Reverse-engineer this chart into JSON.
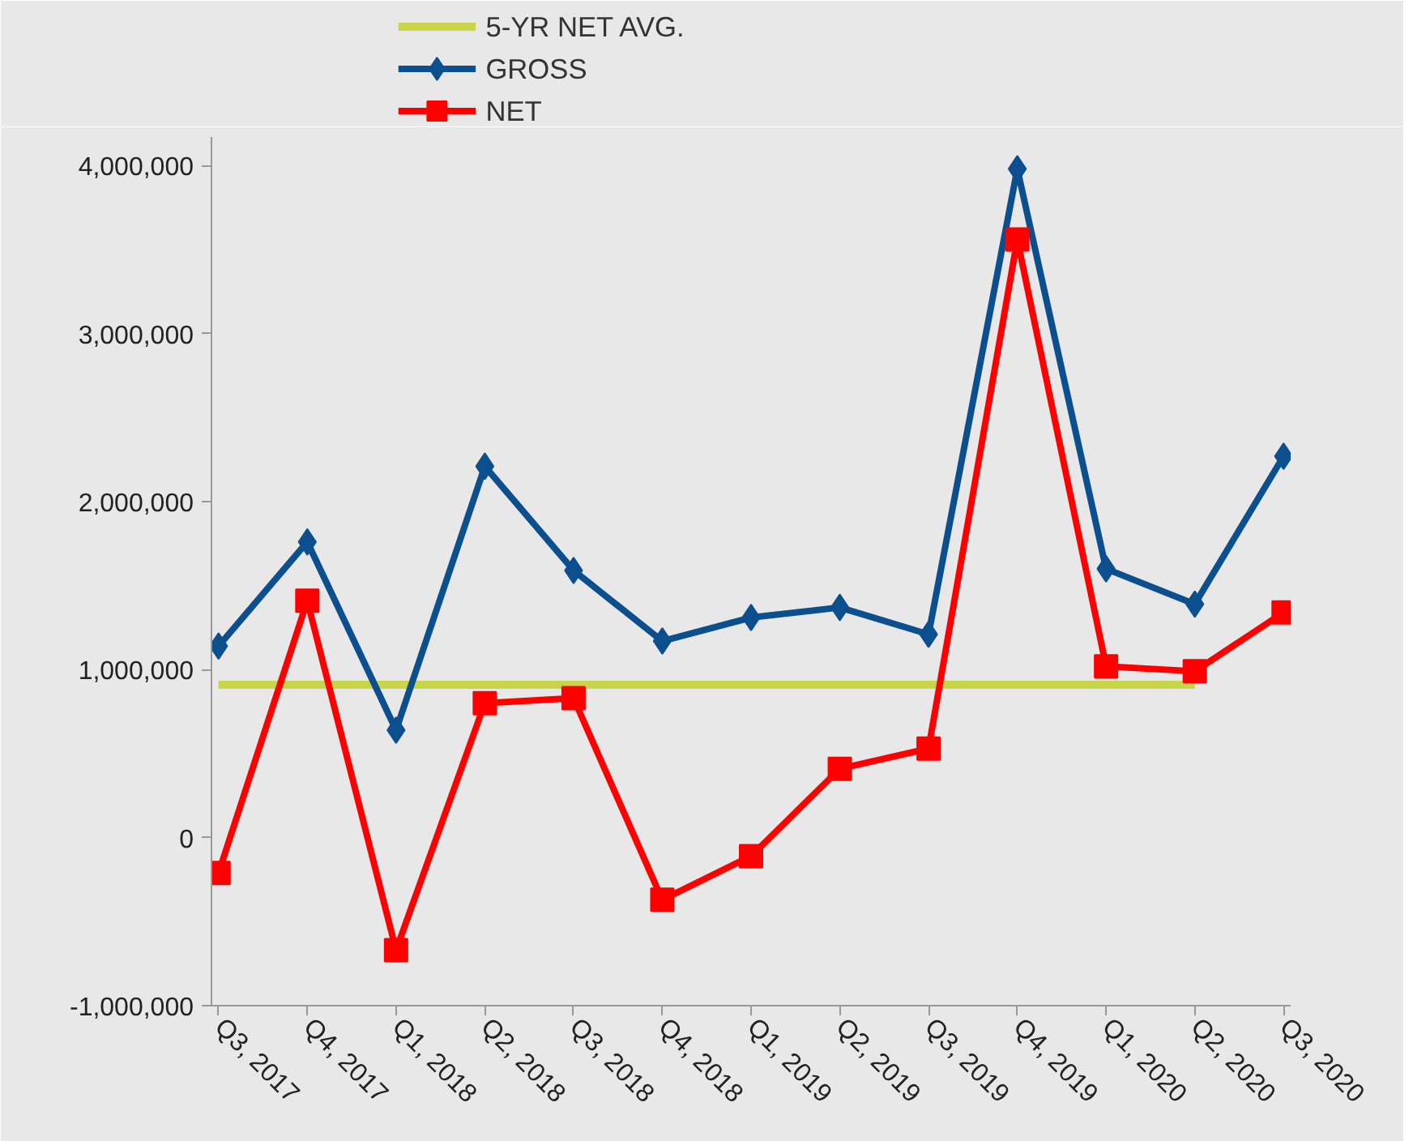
{
  "chart_data": {
    "type": "line",
    "categories": [
      "Q3, 2017",
      "Q4, 2017",
      "Q1, 2018",
      "Q2, 2018",
      "Q3, 2018",
      "Q4, 2018",
      "Q1, 2019",
      "Q2, 2019",
      "Q3, 2019",
      "Q4, 2019",
      "Q1, 2020",
      "Q2, 2020",
      "Q3, 2020"
    ],
    "series": [
      {
        "name": "5-YR NET AVG.",
        "color": "#c8d44a",
        "marker": "none",
        "values": [
          910000,
          910000,
          910000,
          910000,
          910000,
          910000,
          910000,
          910000,
          910000,
          910000,
          910000,
          910000,
          null
        ]
      },
      {
        "name": "GROSS",
        "color": "#0b4f8f",
        "marker": "diamond",
        "values": [
          1140000,
          1760000,
          640000,
          2210000,
          1590000,
          1170000,
          1310000,
          1370000,
          1210000,
          3980000,
          1600000,
          1390000,
          2270000
        ]
      },
      {
        "name": "NET",
        "color": "#ff0000",
        "marker": "square",
        "values": [
          -210000,
          1410000,
          -670000,
          800000,
          830000,
          -370000,
          -110000,
          410000,
          530000,
          3560000,
          1020000,
          990000,
          1340000
        ]
      }
    ],
    "ylim": [
      -1000000,
      4170000
    ],
    "yticks": [
      {
        "value": -1000000,
        "label": "-1,000,000"
      },
      {
        "value": 0,
        "label": "0"
      },
      {
        "value": 1000000,
        "label": "1,000,000"
      },
      {
        "value": 2000000,
        "label": "2,000,000"
      },
      {
        "value": 3000000,
        "label": "3,000,000"
      },
      {
        "value": 4000000,
        "label": "4,000,000"
      }
    ],
    "grid": false,
    "legend": "top left",
    "line_style": "solid"
  }
}
